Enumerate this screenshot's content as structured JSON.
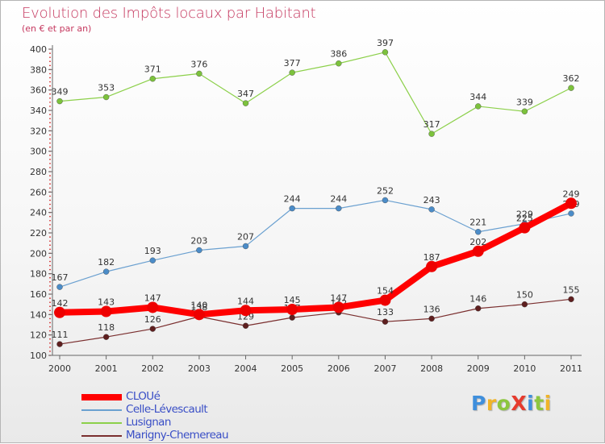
{
  "colors": {
    "title": "#c5385f",
    "subtitle": "#c5385f",
    "legend_text": "#3a4fc6",
    "axis": "#666666",
    "grid_dots": "#cc0000"
  },
  "header": {
    "title": "Evolution des Impôts locaux par Habitant",
    "subtitle": "(en € et par an)"
  },
  "logo": {
    "text": "ProXiti",
    "letter_colors": [
      "#3f8fdc",
      "#f0b429",
      "#8cc63f",
      "#e63b2e",
      "#3f8fdc",
      "#8cc63f",
      "#f0b429"
    ]
  },
  "chart_data": {
    "type": "line",
    "categories": [
      "2000",
      "2001",
      "2002",
      "2003",
      "2004",
      "2005",
      "2006",
      "2007",
      "2008",
      "2009",
      "2010",
      "2011"
    ],
    "ylim": [
      100,
      400
    ],
    "yticks": [
      100,
      120,
      140,
      160,
      180,
      200,
      220,
      240,
      260,
      280,
      300,
      320,
      340,
      360,
      380,
      400
    ],
    "grid": false,
    "legend_position": "bottom-left",
    "series": [
      {
        "name": "Lusignan",
        "color": "#8cd04a",
        "point_color": "#7cc23c",
        "width": 1.2,
        "marker": 3.5,
        "values": [
          349,
          353,
          371,
          376,
          347,
          377,
          386,
          397,
          317,
          344,
          339,
          362
        ]
      },
      {
        "name": "Celle-Lévescault",
        "color": "#6aa0d0",
        "point_color": "#4b8cc8",
        "width": 1.2,
        "marker": 3.5,
        "values": [
          167,
          182,
          193,
          203,
          207,
          244,
          244,
          252,
          243,
          221,
          229,
          239
        ]
      },
      {
        "name": "Marigny-Chemereau",
        "color": "#7a2e2e",
        "point_color": "#5e1f1f",
        "width": 1.2,
        "marker": 3.5,
        "values": [
          111,
          118,
          126,
          138,
          129,
          137,
          142,
          133,
          136,
          146,
          150,
          155
        ]
      },
      {
        "name": "CLOUé",
        "color": "#ff0000",
        "point_color": "#ee0000",
        "width": 8,
        "marker": 7,
        "values": [
          142,
          143,
          147,
          140,
          144,
          145,
          147,
          154,
          187,
          202,
          225,
          249
        ]
      }
    ]
  }
}
